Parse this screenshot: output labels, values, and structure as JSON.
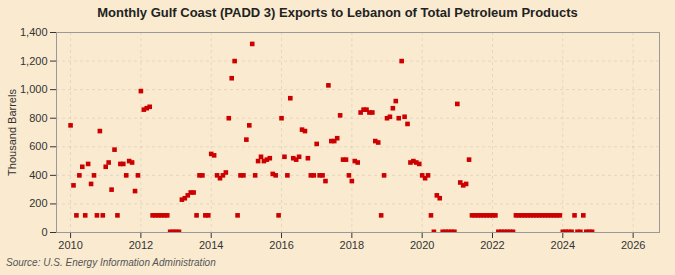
{
  "chart_data": {
    "type": "scatter",
    "title": "Monthly Gulf Coast (PADD 3) Exports to Lebanon of Total Petroleum Products",
    "ylabel": "Thousand Barrels",
    "source": "Source: U.S. Energy Information Administration",
    "color": "#cc0000",
    "marker": "square",
    "grid": true,
    "xlim": [
      2009.6,
      2026.75
    ],
    "xticks": [
      2010,
      2012,
      2014,
      2016,
      2018,
      2020,
      2022,
      2024,
      2026
    ],
    "ylim": [
      0,
      1400
    ],
    "yticks": [
      0,
      200,
      400,
      600,
      800,
      {
        "value": 1000,
        "label": "1,000"
      },
      {
        "value": 1200,
        "label": "1,200"
      },
      {
        "value": 1400,
        "label": "1,400"
      }
    ],
    "x": [
      2010,
      2010.0833333333333,
      2010.1666666666667,
      2010.25,
      2010.3333333333333,
      2010.4166666666667,
      2010.5,
      2010.5833333333333,
      2010.6666666666667,
      2010.75,
      2010.8333333333333,
      2010.9166666666667,
      2011,
      2011.0833333333333,
      2011.1666666666667,
      2011.25,
      2011.3333333333333,
      2011.4166666666667,
      2011.5,
      2011.5833333333333,
      2011.6666666666667,
      2011.75,
      2011.8333333333333,
      2011.9166666666667,
      2012,
      2012.0833333333333,
      2012.1666666666667,
      2012.25,
      2012.3333333333333,
      2012.4166666666667,
      2012.5,
      2012.5833333333333,
      2012.6666666666667,
      2012.75,
      2012.8333333333333,
      2012.9166666666667,
      2013,
      2013.0833333333333,
      2013.1666666666667,
      2013.25,
      2013.3333333333333,
      2013.4166666666667,
      2013.5,
      2013.5833333333333,
      2013.6666666666667,
      2013.75,
      2013.8333333333333,
      2013.9166666666667,
      2014,
      2014.0833333333333,
      2014.1666666666667,
      2014.25,
      2014.3333333333333,
      2014.4166666666667,
      2014.5,
      2014.5833333333333,
      2014.6666666666667,
      2014.75,
      2014.8333333333333,
      2014.9166666666667,
      2015,
      2015.0833333333333,
      2015.1666666666667,
      2015.25,
      2015.3333333333333,
      2015.4166666666667,
      2015.5,
      2015.5833333333333,
      2015.6666666666667,
      2015.75,
      2015.8333333333333,
      2015.9166666666667,
      2016,
      2016.0833333333333,
      2016.1666666666667,
      2016.25,
      2016.3333333333333,
      2016.4166666666667,
      2016.5,
      2016.5833333333333,
      2016.6666666666667,
      2016.75,
      2016.8333333333333,
      2016.9166666666667,
      2017,
      2017.0833333333333,
      2017.1666666666667,
      2017.25,
      2017.3333333333333,
      2017.4166666666667,
      2017.5,
      2017.5833333333333,
      2017.6666666666667,
      2017.75,
      2017.8333333333333,
      2017.9166666666667,
      2018,
      2018.0833333333333,
      2018.1666666666667,
      2018.25,
      2018.3333333333333,
      2018.4166666666667,
      2018.5,
      2018.5833333333333,
      2018.6666666666667,
      2018.75,
      2018.8333333333333,
      2018.9166666666667,
      2019,
      2019.0833333333333,
      2019.1666666666667,
      2019.25,
      2019.3333333333333,
      2019.4166666666667,
      2019.5,
      2019.5833333333333,
      2019.6666666666667,
      2019.75,
      2019.8333333333333,
      2019.9166666666667,
      2020,
      2020.0833333333333,
      2020.1666666666667,
      2020.25,
      2020.3333333333333,
      2020.4166666666667,
      2020.5,
      2020.5833333333333,
      2020.6666666666667,
      2020.75,
      2020.8333333333333,
      2020.9166666666667,
      2021,
      2021.0833333333333,
      2021.1666666666667,
      2021.25,
      2021.3333333333333,
      2021.4166666666667,
      2021.5,
      2021.5833333333333,
      2021.6666666666667,
      2021.75,
      2021.8333333333333,
      2021.9166666666667,
      2022,
      2022.0833333333333,
      2022.1666666666667,
      2022.25,
      2022.3333333333333,
      2022.4166666666667,
      2022.5,
      2022.5833333333333,
      2022.6666666666667,
      2022.75,
      2022.8333333333333,
      2022.9166666666667,
      2023,
      2023.0833333333333,
      2023.1666666666667,
      2023.25,
      2023.3333333333333,
      2023.4166666666667,
      2023.5,
      2023.5833333333333,
      2023.6666666666667,
      2023.75,
      2023.8333333333333,
      2023.9166666666667,
      2024,
      2024.0833333333333,
      2024.1666666666667,
      2024.25,
      2024.3333333333333,
      2024.4166666666667,
      2024.5,
      2024.5833333333333,
      2024.6666666666667,
      2024.75,
      2024.8333333333333
    ],
    "values": [
      750,
      330,
      120,
      400,
      460,
      120,
      480,
      340,
      400,
      120,
      710,
      120,
      460,
      490,
      300,
      580,
      120,
      480,
      480,
      400,
      500,
      490,
      290,
      400,
      990,
      860,
      870,
      880,
      120,
      120,
      120,
      120,
      120,
      120,
      5,
      5,
      5,
      5,
      230,
      240,
      260,
      280,
      280,
      120,
      400,
      400,
      120,
      120,
      550,
      540,
      400,
      380,
      400,
      420,
      800,
      1080,
      1200,
      120,
      400,
      400,
      650,
      750,
      1320,
      400,
      500,
      530,
      500,
      510,
      520,
      410,
      400,
      120,
      800,
      530,
      400,
      940,
      520,
      510,
      530,
      720,
      710,
      520,
      400,
      400,
      620,
      400,
      400,
      360,
      1030,
      640,
      640,
      660,
      820,
      510,
      510,
      400,
      360,
      500,
      490,
      840,
      860,
      860,
      840,
      840,
      640,
      630,
      120,
      400,
      800,
      810,
      870,
      920,
      800,
      1200,
      810,
      760,
      490,
      500,
      490,
      480,
      400,
      380,
      400,
      120,
      5,
      260,
      240,
      5,
      5,
      5,
      5,
      5,
      900,
      350,
      330,
      340,
      510,
      120,
      120,
      120,
      120,
      120,
      120,
      120,
      120,
      120,
      5,
      5,
      5,
      5,
      5,
      5,
      120,
      120,
      120,
      120,
      120,
      120,
      120,
      120,
      120,
      120,
      120,
      120,
      120,
      120,
      120,
      120,
      5,
      5,
      5,
      5,
      120,
      5,
      5,
      120,
      5,
      5,
      5
    ]
  }
}
